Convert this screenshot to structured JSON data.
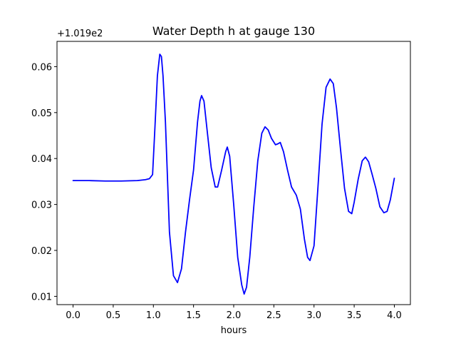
{
  "chart_data": {
    "type": "line",
    "title": "Water Depth h at gauge 130",
    "xlabel": "hours",
    "ylabel": "",
    "offset_label": "+1.019e2",
    "xlim": [
      -0.2,
      4.2
    ],
    "ylim": [
      0.0082,
      0.0655
    ],
    "xticks": [
      0.0,
      0.5,
      1.0,
      1.5,
      2.0,
      2.5,
      3.0,
      3.5,
      4.0
    ],
    "xtick_labels": [
      "0.0",
      "0.5",
      "1.0",
      "1.5",
      "2.0",
      "2.5",
      "3.0",
      "3.5",
      "4.0"
    ],
    "yticks": [
      0.01,
      0.02,
      0.03,
      0.04,
      0.05,
      0.06
    ],
    "ytick_labels": [
      "0.01",
      "0.02",
      "0.03",
      "0.04",
      "0.05",
      "0.06"
    ],
    "grid": false,
    "series": [
      {
        "color": "#0000ff",
        "x": [
          0.0,
          0.2,
          0.4,
          0.6,
          0.8,
          0.9,
          0.95,
          0.99,
          1.02,
          1.05,
          1.08,
          1.1,
          1.12,
          1.15,
          1.2,
          1.25,
          1.3,
          1.35,
          1.4,
          1.45,
          1.5,
          1.55,
          1.58,
          1.6,
          1.63,
          1.67,
          1.72,
          1.77,
          1.8,
          1.85,
          1.9,
          1.92,
          1.95,
          2.0,
          2.05,
          2.1,
          2.13,
          2.16,
          2.2,
          2.25,
          2.3,
          2.35,
          2.39,
          2.43,
          2.47,
          2.52,
          2.55,
          2.58,
          2.62,
          2.67,
          2.72,
          2.78,
          2.83,
          2.88,
          2.92,
          2.95,
          3.0,
          3.05,
          3.1,
          3.15,
          3.2,
          3.24,
          3.28,
          3.33,
          3.38,
          3.43,
          3.47,
          3.5,
          3.55,
          3.6,
          3.64,
          3.68,
          3.72,
          3.77,
          3.82,
          3.87,
          3.91,
          3.95,
          4.0
        ],
        "values": [
          0.0352,
          0.0352,
          0.0351,
          0.0351,
          0.0352,
          0.0354,
          0.0356,
          0.0365,
          0.047,
          0.058,
          0.0627,
          0.0622,
          0.058,
          0.048,
          0.024,
          0.0145,
          0.013,
          0.016,
          0.024,
          0.031,
          0.0375,
          0.048,
          0.0525,
          0.0537,
          0.0525,
          0.046,
          0.038,
          0.0338,
          0.0338,
          0.0375,
          0.0415,
          0.0425,
          0.0405,
          0.03,
          0.0185,
          0.0125,
          0.0105,
          0.012,
          0.0185,
          0.0295,
          0.0395,
          0.0455,
          0.0469,
          0.0462,
          0.0444,
          0.043,
          0.0432,
          0.0435,
          0.0415,
          0.0375,
          0.0338,
          0.032,
          0.029,
          0.0225,
          0.0185,
          0.0178,
          0.021,
          0.034,
          0.0475,
          0.0555,
          0.0573,
          0.0563,
          0.051,
          0.042,
          0.0335,
          0.0285,
          0.028,
          0.0305,
          0.0355,
          0.0395,
          0.0403,
          0.0393,
          0.0368,
          0.0335,
          0.0295,
          0.0282,
          0.0285,
          0.031,
          0.0357
        ]
      }
    ]
  }
}
